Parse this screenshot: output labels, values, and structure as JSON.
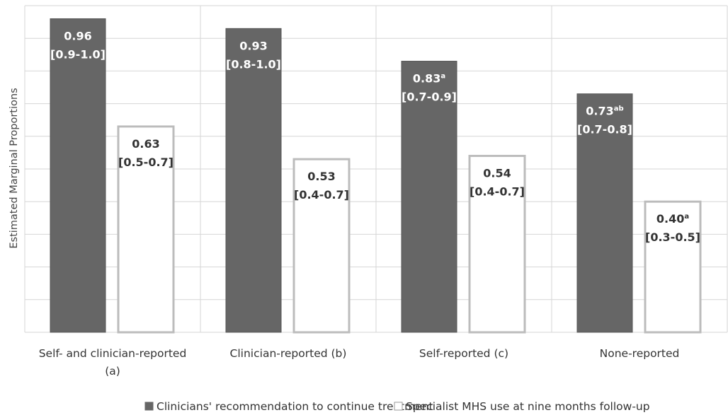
{
  "chart_data": {
    "type": "bar",
    "title": "",
    "xlabel": "",
    "ylabel": "Estimated Marginal Proportions",
    "ylim": [
      0,
      1.0
    ],
    "grid": true,
    "legend_position": "bottom",
    "categories": [
      [
        "Self- and clinician-reported",
        "(a)"
      ],
      [
        "Clinician-reported (b)"
      ],
      [
        "Self-reported (c)"
      ],
      [
        "None-reported"
      ]
    ],
    "series": [
      {
        "name": "Clinicians' recommendation to continue treatment",
        "color": "#666666",
        "values": [
          0.96,
          0.93,
          0.83,
          0.73
        ],
        "labels": [
          {
            "value": "0.96",
            "sup": "",
            "ci": "[0.9-1.0]"
          },
          {
            "value": "0.93",
            "sup": "",
            "ci": "[0.8-1.0]"
          },
          {
            "value": "0.83",
            "sup": "a",
            "ci": "[0.7-0.9]"
          },
          {
            "value": "0.73",
            "sup": "ab",
            "ci": "[0.7-0.8]"
          }
        ]
      },
      {
        "name": "Specialist MHS use at nine months follow-up",
        "color": "#ffffff",
        "values": [
          0.63,
          0.53,
          0.54,
          0.4
        ],
        "labels": [
          {
            "value": "0.63",
            "sup": "",
            "ci": "[0.5-0.7]"
          },
          {
            "value": "0.53",
            "sup": "",
            "ci": "[0.4-0.7]"
          },
          {
            "value": "0.54",
            "sup": "",
            "ci": "[0.4-0.7]"
          },
          {
            "value": "0.40",
            "sup": "a",
            "ci": "[0.3-0.5]"
          }
        ]
      }
    ]
  }
}
